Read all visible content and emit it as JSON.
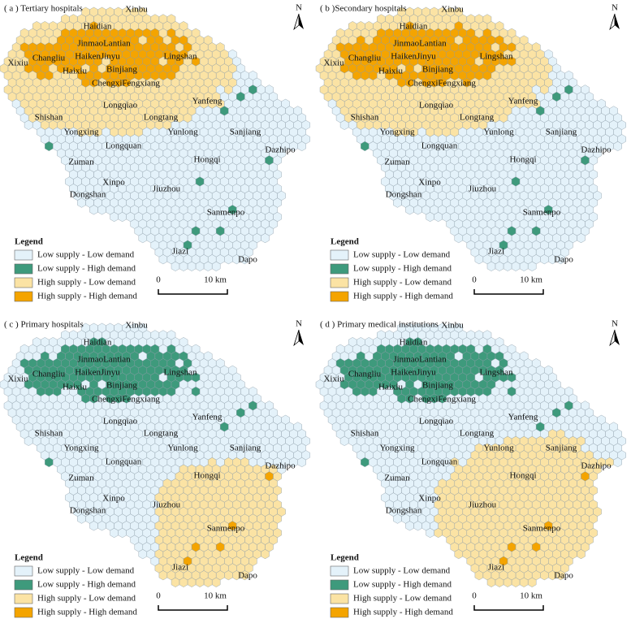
{
  "panels": [
    {
      "title": "( a ) Tertiary hospitals"
    },
    {
      "title": "( b )Secondary hospitals"
    },
    {
      "title": "( c ) Primary hospitals"
    },
    {
      "title": "( d ) Primary medical institutions"
    }
  ],
  "places": [
    "Xinbu",
    "Haidian",
    "JinmaoLantian",
    "HaikenJinyu",
    "Lingshan",
    "Xixiu",
    "Changliu",
    "Binjiang",
    "Haixiu",
    "ChengxiFengxiang",
    "Yanfeng",
    "Longqiao",
    "Shishan",
    "Longtang",
    "Yunlong",
    "Sanjiang",
    "Yongxing",
    "Longquan",
    "Dazhipo",
    "Hongqi",
    "Zuman",
    "Xinpo",
    "Jiuzhou",
    "Dongshan",
    "Sanmenpo",
    "Jiazi",
    "Dapo"
  ],
  "legend": {
    "title": "Legend",
    "items": [
      {
        "label": "Low supply - Low demand",
        "color": "#e4f2fa"
      },
      {
        "label": "Low supply - High demand",
        "color": "#3e9a7c"
      },
      {
        "label": "High supply - Low demand",
        "color": "#fbe3a4"
      },
      {
        "label": "High supply - High demand",
        "color": "#f4a400"
      }
    ]
  },
  "scale_bar": {
    "start": "0",
    "end": "10 km"
  },
  "north": "N"
}
